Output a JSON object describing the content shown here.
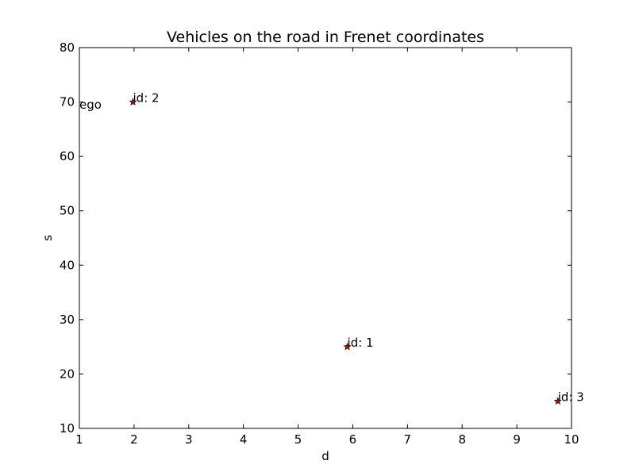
{
  "chart_data": {
    "type": "scatter",
    "title": "Vehicles on the road in Frenet coordinates",
    "xlabel": "d",
    "ylabel": "s",
    "xlim": [
      1,
      10
    ],
    "ylim": [
      10,
      80
    ],
    "xticks": [
      1,
      2,
      3,
      4,
      5,
      6,
      7,
      8,
      9,
      10
    ],
    "yticks": [
      10,
      20,
      30,
      40,
      50,
      60,
      70,
      80
    ],
    "grid": false,
    "marker": "star",
    "marker_color": "#cc0000",
    "points": [
      {
        "label": "id: 2",
        "x": 1.98,
        "y": 70.0
      },
      {
        "label": "id: 1",
        "x": 5.9,
        "y": 25.0
      },
      {
        "label": "id: 3",
        "x": 9.75,
        "y": 15.0
      }
    ],
    "annotations": [
      {
        "label": "ego",
        "x": 1.0,
        "y": 69.5
      }
    ]
  }
}
